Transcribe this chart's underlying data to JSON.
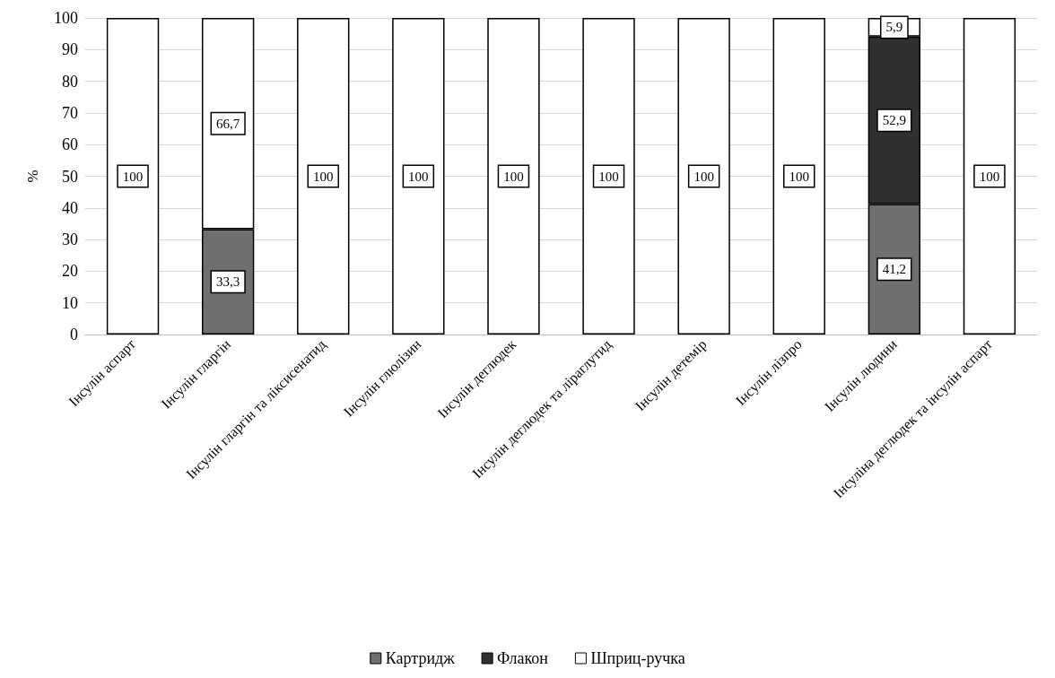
{
  "chart_data": {
    "type": "bar",
    "stacked": true,
    "ylabel": "%",
    "categories": [
      "Інсулін аспарт",
      "Інсулін гларгін",
      "Інсулін гларгін та ліксисенатид",
      "Інсулін глюлізин",
      "Інсулін деглюдек",
      "Інсулін деглюдек та ліраглутид",
      "Інсулін детемір",
      "Інсулін лізпро",
      "Інсулін людини",
      "Інсуліна деглюдек та інсулін аспарт"
    ],
    "series": [
      {
        "name": "Картридж",
        "color": "#707070",
        "values": [
          0,
          33.3,
          0,
          0,
          0,
          0,
          0,
          0,
          41.2,
          0
        ],
        "value_labels": [
          null,
          "33,3",
          null,
          null,
          null,
          null,
          null,
          null,
          "41,2",
          null
        ]
      },
      {
        "name": "Флакон",
        "color": "#303030",
        "values": [
          0,
          0,
          0,
          0,
          0,
          0,
          0,
          0,
          52.9,
          0
        ],
        "value_labels": [
          null,
          null,
          null,
          null,
          null,
          null,
          null,
          null,
          "52,9",
          null
        ]
      },
      {
        "name": "Шприц-ручка",
        "color": "#ffffff",
        "values": [
          100,
          66.7,
          100,
          100,
          100,
          100,
          100,
          100,
          5.9,
          100
        ],
        "value_labels": [
          "100",
          "66,7",
          "100",
          "100",
          "100",
          "100",
          "100",
          "100",
          "5,9",
          "100"
        ]
      }
    ],
    "ylim": [
      0,
      100
    ],
    "yticks": [
      0,
      10,
      20,
      30,
      40,
      50,
      60,
      70,
      80,
      90,
      100
    ],
    "grid": "y",
    "legend": "bottom"
  }
}
